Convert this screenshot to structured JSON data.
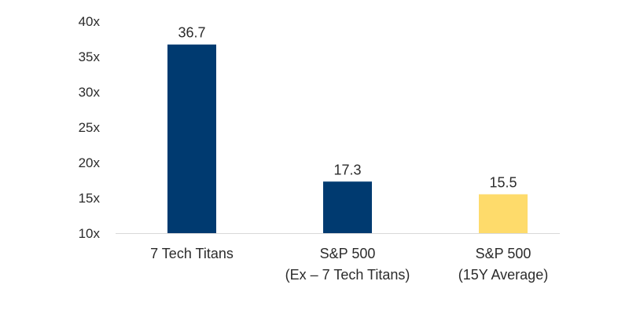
{
  "chart_data": {
    "type": "bar",
    "categories": [
      [
        "7 Tech Titans"
      ],
      [
        "S&P 500",
        "(Ex – 7 Tech Titans)"
      ],
      [
        "S&P 500",
        "(15Y Average)"
      ]
    ],
    "values": [
      36.7,
      17.3,
      15.5
    ],
    "data_labels": [
      "36.7",
      "17.3",
      "15.5"
    ],
    "bar_colors": [
      "#003a70",
      "#003a70",
      "#fedb6b"
    ],
    "ylim": [
      10,
      40
    ],
    "yticks": [
      10,
      15,
      20,
      25,
      30,
      35,
      40
    ],
    "ytick_labels": [
      "10x",
      "15x",
      "20x",
      "25x",
      "30x",
      "35x",
      "40x"
    ],
    "title": "",
    "xlabel": "",
    "ylabel": "",
    "grid": false,
    "legend": "none"
  }
}
